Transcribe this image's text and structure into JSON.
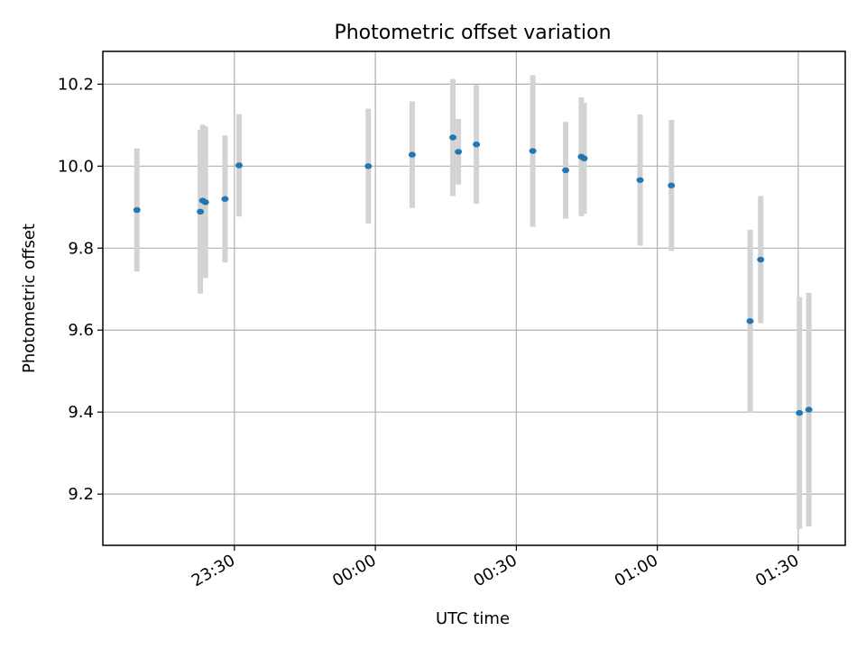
{
  "chart_data": {
    "type": "scatter",
    "title": "Photometric offset variation",
    "xlabel": "UTC time",
    "ylabel": "Photometric offset",
    "xaxis_kind": "datetime",
    "xlim": [
      "2023-01-01T23:02:00",
      "2023-01-02T01:40:00"
    ],
    "ylim": [
      9.075,
      10.28
    ],
    "x_ticks": [
      {
        "t": "2023-01-01T23:30:00",
        "label": "23:30"
      },
      {
        "t": "2023-01-02T00:00:00",
        "label": "00:00"
      },
      {
        "t": "2023-01-02T00:30:00",
        "label": "00:30"
      },
      {
        "t": "2023-01-02T01:00:00",
        "label": "01:00"
      },
      {
        "t": "2023-01-02T01:30:00",
        "label": "01:30"
      }
    ],
    "y_ticks": [
      {
        "v": 9.2,
        "label": "9.2"
      },
      {
        "v": 9.4,
        "label": "9.4"
      },
      {
        "v": 9.6,
        "label": "9.6"
      },
      {
        "v": 9.8,
        "label": "9.8"
      },
      {
        "v": 10.0,
        "label": "10.0"
      },
      {
        "v": 10.2,
        "label": "10.2"
      }
    ],
    "grid": true,
    "marker_color": "#1f77b4",
    "errorbar_color": "#d3d3d3",
    "points": [
      {
        "t": "2023-01-01T23:09:15",
        "y": 9.893,
        "err": 0.15
      },
      {
        "t": "2023-01-01T23:22:45",
        "y": 9.889,
        "err": 0.2
      },
      {
        "t": "2023-01-01T23:23:15",
        "y": 9.916,
        "err": 0.185
      },
      {
        "t": "2023-01-01T23:23:50",
        "y": 9.912,
        "err": 0.185
      },
      {
        "t": "2023-01-01T23:28:00",
        "y": 9.92,
        "err": 0.155
      },
      {
        "t": "2023-01-01T23:31:00",
        "y": 10.002,
        "err": 0.125
      },
      {
        "t": "2023-01-01T23:58:30",
        "y": 10.0,
        "err": 0.14
      },
      {
        "t": "2023-01-02T00:07:50",
        "y": 10.028,
        "err": 0.13
      },
      {
        "t": "2023-01-02T00:16:30",
        "y": 10.07,
        "err": 0.143
      },
      {
        "t": "2023-01-02T00:17:40",
        "y": 10.035,
        "err": 0.08
      },
      {
        "t": "2023-01-02T00:21:30",
        "y": 10.053,
        "err": 0.145
      },
      {
        "t": "2023-01-02T00:33:30",
        "y": 10.037,
        "err": 0.185
      },
      {
        "t": "2023-01-02T00:40:30",
        "y": 9.99,
        "err": 0.118
      },
      {
        "t": "2023-01-02T00:43:50",
        "y": 10.023,
        "err": 0.145
      },
      {
        "t": "2023-01-02T00:44:25",
        "y": 10.019,
        "err": 0.135
      },
      {
        "t": "2023-01-02T00:56:20",
        "y": 9.966,
        "err": 0.16
      },
      {
        "t": "2023-01-02T01:03:00",
        "y": 9.953,
        "err": 0.16
      },
      {
        "t": "2023-01-02T01:19:45",
        "y": 9.622,
        "err": 0.223
      },
      {
        "t": "2023-01-02T01:22:00",
        "y": 9.772,
        "err": 0.155
      },
      {
        "t": "2023-01-02T01:30:15",
        "y": 9.398,
        "err": 0.283
      },
      {
        "t": "2023-01-02T01:32:15",
        "y": 9.406,
        "err": 0.285
      }
    ]
  }
}
